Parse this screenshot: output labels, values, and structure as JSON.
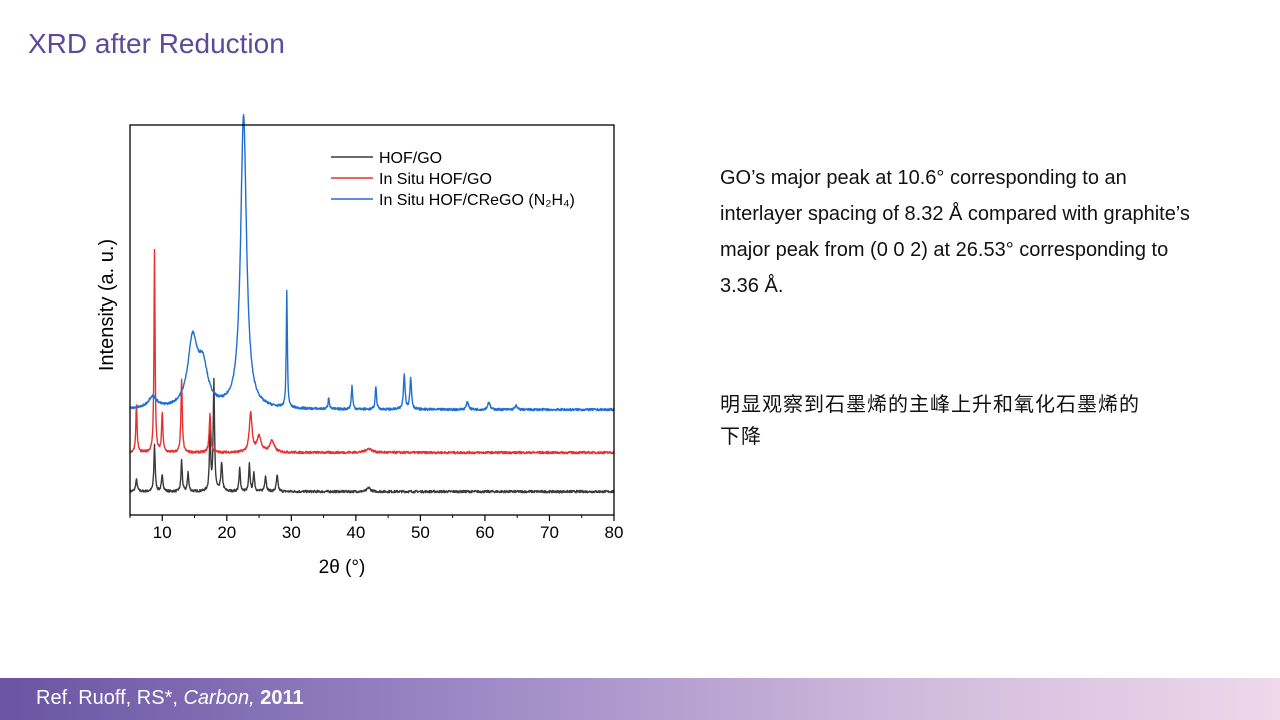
{
  "slide": {
    "title": "XRD after Reduction",
    "description": "GO’s major peak at 10.6° corresponding to an interlayer spacing of 8.32 Å compared with graphite’s major peak from (0 0 2) at 26.53° corresponding to 3.36 Å.",
    "note_cn": "明显观察到石墨烯的主峰上升和氧化石墨烯的下降",
    "reference": {
      "prefix": "Ref. Ruoff, RS*, ",
      "journal": "Carbon,",
      "year": "2011"
    }
  },
  "chart_data": {
    "type": "line",
    "xlabel": "2θ (°)",
    "ylabel": "Intensity (a. u.)",
    "xlim": [
      5,
      80
    ],
    "ylim": [
      0,
      100
    ],
    "xticks": [
      10,
      20,
      30,
      40,
      50,
      60,
      70,
      80
    ],
    "y_tick_labels": false,
    "grid": false,
    "legend_position": "top-right",
    "series": [
      {
        "name": "HOF/GO",
        "color": "#3a3a3a",
        "baseline": 6,
        "peaks": [
          {
            "x": 6.0,
            "h": 3,
            "w": 0.15
          },
          {
            "x": 8.8,
            "h": 12,
            "w": 0.12
          },
          {
            "x": 10.0,
            "h": 4,
            "w": 0.15
          },
          {
            "x": 13.0,
            "h": 8,
            "w": 0.12
          },
          {
            "x": 14.0,
            "h": 5,
            "w": 0.12
          },
          {
            "x": 17.4,
            "h": 15,
            "w": 0.12
          },
          {
            "x": 18.0,
            "h": 28,
            "w": 0.12
          },
          {
            "x": 19.2,
            "h": 7,
            "w": 0.15
          },
          {
            "x": 22.0,
            "h": 6,
            "w": 0.12
          },
          {
            "x": 23.5,
            "h": 7,
            "w": 0.12
          },
          {
            "x": 24.2,
            "h": 5,
            "w": 0.12
          },
          {
            "x": 26.0,
            "h": 4,
            "w": 0.15
          },
          {
            "x": 27.8,
            "h": 4,
            "w": 0.15
          },
          {
            "x": 42.0,
            "h": 1,
            "w": 0.3
          }
        ]
      },
      {
        "name": "In Situ HOF/GO",
        "color": "#e8302e",
        "baseline": 16,
        "peaks": [
          {
            "x": 6.0,
            "h": 12,
            "w": 0.12
          },
          {
            "x": 8.8,
            "h": 52,
            "w": 0.1
          },
          {
            "x": 10.0,
            "h": 10,
            "w": 0.12
          },
          {
            "x": 13.0,
            "h": 19,
            "w": 0.12
          },
          {
            "x": 17.4,
            "h": 10,
            "w": 0.15
          },
          {
            "x": 23.7,
            "h": 10,
            "w": 0.25
          },
          {
            "x": 25.0,
            "h": 4,
            "w": 0.4
          },
          {
            "x": 27.0,
            "h": 3,
            "w": 0.4
          },
          {
            "x": 42.0,
            "h": 1,
            "w": 0.6
          }
        ]
      },
      {
        "name": "In Situ HOF/CReGO (N₂H₄)",
        "color": "#1f6fd1",
        "baseline": 27,
        "peaks": [
          {
            "x": 8.5,
            "h": 3,
            "w": 0.8
          },
          {
            "x": 14.7,
            "h": 17,
            "w": 0.9
          },
          {
            "x": 16.3,
            "h": 10,
            "w": 0.9
          },
          {
            "x": 22.6,
            "h": 75,
            "w": 0.55
          },
          {
            "x": 29.3,
            "h": 30,
            "w": 0.1
          },
          {
            "x": 35.8,
            "h": 3,
            "w": 0.12
          },
          {
            "x": 39.4,
            "h": 6,
            "w": 0.12
          },
          {
            "x": 43.1,
            "h": 6,
            "w": 0.12
          },
          {
            "x": 47.5,
            "h": 9,
            "w": 0.15
          },
          {
            "x": 48.5,
            "h": 8,
            "w": 0.15
          },
          {
            "x": 57.3,
            "h": 2,
            "w": 0.2
          },
          {
            "x": 60.6,
            "h": 2,
            "w": 0.2
          },
          {
            "x": 64.8,
            "h": 1,
            "w": 0.2
          }
        ]
      }
    ]
  }
}
